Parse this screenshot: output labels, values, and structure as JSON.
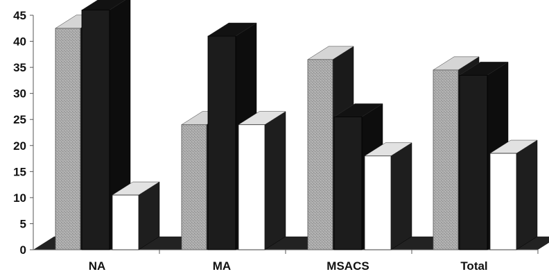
{
  "chart_data": {
    "type": "bar",
    "style": "3d-clustered",
    "categories": [
      "NA",
      "MA",
      "MSACS",
      "Total"
    ],
    "series": [
      {
        "values": [
          42.5,
          24,
          36.5,
          34.5
        ],
        "color": "#a9a9a9"
      },
      {
        "values": [
          46,
          41,
          25.5,
          33.5
        ],
        "color": "#1c1c1c"
      },
      {
        "values": [
          10.5,
          24,
          18,
          18.5
        ],
        "color": "#ffffff"
      }
    ],
    "ylim": [
      0,
      45
    ],
    "yticks": [
      "0",
      "5",
      "10",
      "15",
      "20",
      "25",
      "30",
      "35",
      "40",
      "45"
    ],
    "xlabel": "",
    "ylabel": "",
    "title": "",
    "grid": false,
    "legend": "none"
  }
}
